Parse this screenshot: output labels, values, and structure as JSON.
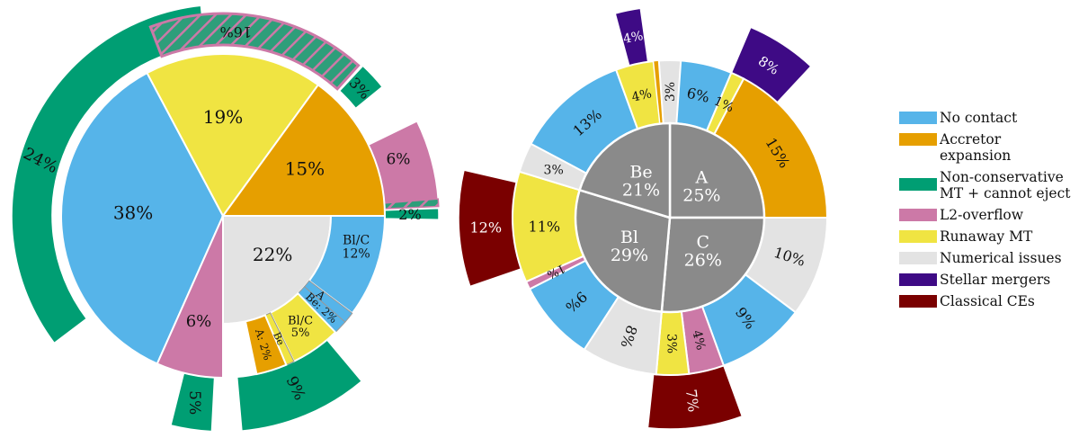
{
  "colors": {
    "no_contact": "#56B4E9",
    "accretor_expansion": "#E69F00",
    "non_conservative": "#009E73",
    "l2_overflow": "#CC79A7",
    "runaway_mt": "#F0E442",
    "numerical": "#E3E3E3",
    "mergers": "#3E0A85",
    "classical_ce": "#7A0000",
    "center": "#8A8A8A",
    "hatch_stroke": "#CC79A7"
  },
  "legend": {
    "items": [
      {
        "label": "No contact",
        "color": "#56B4E9"
      },
      {
        "label": "Accretor expansion",
        "color": "#E69F00"
      },
      {
        "label": "Non-conservative MT + cannot eject",
        "color": "#009E73"
      },
      {
        "label": "L2-overflow",
        "color": "#CC79A7"
      },
      {
        "label": "Runaway MT",
        "color": "#F0E442"
      },
      {
        "label": "Numerical issues",
        "color": "#E3E3E3"
      },
      {
        "label": "Stellar mergers",
        "color": "#3E0A85"
      },
      {
        "label": "Classical CEs",
        "color": "#7A0000"
      }
    ]
  },
  "chart_data": [
    {
      "type": "pie",
      "name": "left-sunburst",
      "labels": {
        "no_contact": "38%",
        "runaway": "19%",
        "accretor": "15%",
        "numerical": "22%",
        "l2": "6%",
        "hatch": "16%",
        "ncmt_big": "24%",
        "ncmt_top": "3%",
        "l2_right": "6%",
        "ncmt_right": "2%",
        "ncmt_bottom_left": "5%",
        "ncmt_bottom_right": "9%",
        "num_blc": "Bl/C 12%",
        "num_a": "A",
        "num_be": "Be: 2%",
        "run_blc": "Bl/C 5%",
        "run_be": "Be",
        "acc_a": "A: 2%"
      },
      "segments": [
        {
          "category": "No contact",
          "value": 38
        },
        {
          "category": "Runaway MT",
          "value": 19
        },
        {
          "category": "Accretor expansion",
          "value": 15
        },
        {
          "category": "Numerical issues",
          "value": 22
        },
        {
          "category": "L2-overflow",
          "value": 6
        }
      ]
    },
    {
      "type": "pie",
      "name": "right-sunburst",
      "center": [
        {
          "name": "A",
          "value": 25,
          "label": "A",
          "pct": "25%"
        },
        {
          "name": "C",
          "value": 26,
          "label": "C",
          "pct": "26%"
        },
        {
          "name": "Bl",
          "value": 29,
          "label": "Bl",
          "pct": "29%"
        },
        {
          "name": "Be",
          "value": 21,
          "label": "Be",
          "pct": "21%"
        }
      ],
      "labels": {
        "a_nc": "6%",
        "a_run": "1%",
        "a_acc": "15%",
        "a_merge": "8%",
        "c_num": "10%",
        "c_nc": "9%",
        "c_l2": "4%",
        "c_run": "3%",
        "c_ce": "7%",
        "bl_num": "8%",
        "bl_nc": "9%",
        "bl_l2": "1%",
        "bl_run": "11%",
        "bl_ce": "12%",
        "be_num": "3%",
        "be_nc": "13%",
        "be_run": "4%",
        "be_merge": "4%",
        "be_num2": "3%"
      }
    }
  ]
}
